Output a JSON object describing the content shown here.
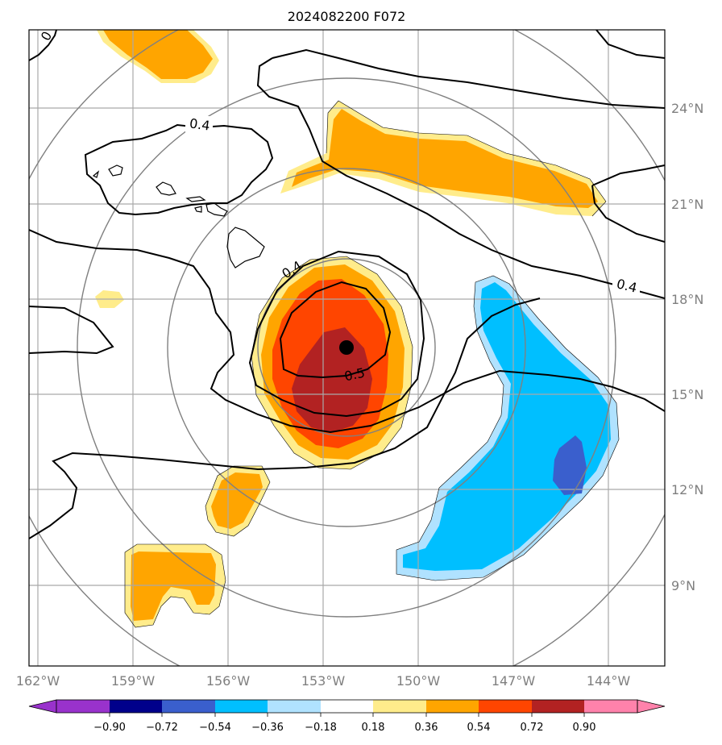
{
  "map": {
    "title": "2024082200 F072",
    "lon_labels": [
      "162°W",
      "159°W",
      "156°W",
      "153°W",
      "150°W",
      "147°W",
      "144°W"
    ],
    "lat_labels": [
      "24°N",
      "21°N",
      "18°N",
      "15°N",
      "12°N",
      "9°N"
    ],
    "contour_labels": [
      "0.4",
      "0.4",
      "0.4",
      "0.5",
      "0"
    ],
    "center_marker": "storm-center",
    "colorbar": {
      "ticks": [
        "−0.90",
        "−0.72",
        "−0.54",
        "−0.36",
        "−0.18",
        "0.18",
        "0.36",
        "0.54",
        "0.72",
        "0.90"
      ],
      "colors": [
        "#9932cc",
        "#00008b",
        "#3a5fcd",
        "#00bfff",
        "#b0e2ff",
        "#ffffff",
        "#ffec8b",
        "#ffa500",
        "#ff4500",
        "#b22222",
        "#ff82ab"
      ]
    },
    "palette": {
      "light_yellow": "#ffec8b",
      "orange": "#ffa500",
      "orange_red": "#ff4500",
      "dark_red": "#b22222",
      "light_blue": "#b0e2ff",
      "deep_sky_blue": "#00bfff",
      "royal_blue": "#3a5fcd",
      "gridline": "#a9a9a9",
      "range_ring": "#808080"
    }
  }
}
